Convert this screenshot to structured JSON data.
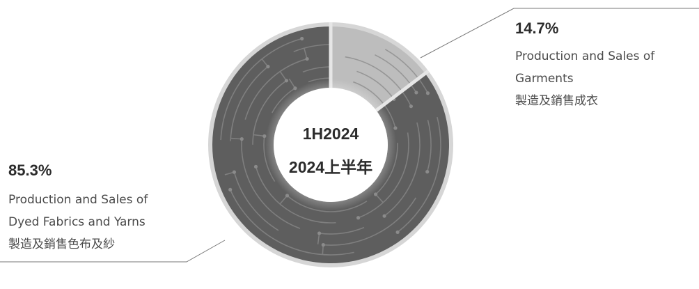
{
  "chart_data": {
    "type": "pie",
    "donut": true,
    "center_label": [
      "1H2024",
      "2024上半年"
    ],
    "categories": [
      "Production and Sales of Dyed Fabrics and Yarns 製造及銷售色布及紗",
      "Production and Sales of Garments 製造及銷售成衣"
    ],
    "values": [
      85.3,
      14.7
    ],
    "colors": {
      "dyed_fabrics": "#5e5e5e",
      "garments": "#bdbdbd"
    },
    "annotations": [
      {
        "pct_text": "85.3%",
        "desc_lines": [
          "Production and Sales of",
          "Dyed Fabrics and Yarns",
          "製造及銷售色布及紗"
        ]
      },
      {
        "pct_text": "14.7%",
        "desc_lines": [
          "Production and Sales of",
          "Garments",
          "製造及銷售成衣"
        ]
      }
    ]
  }
}
